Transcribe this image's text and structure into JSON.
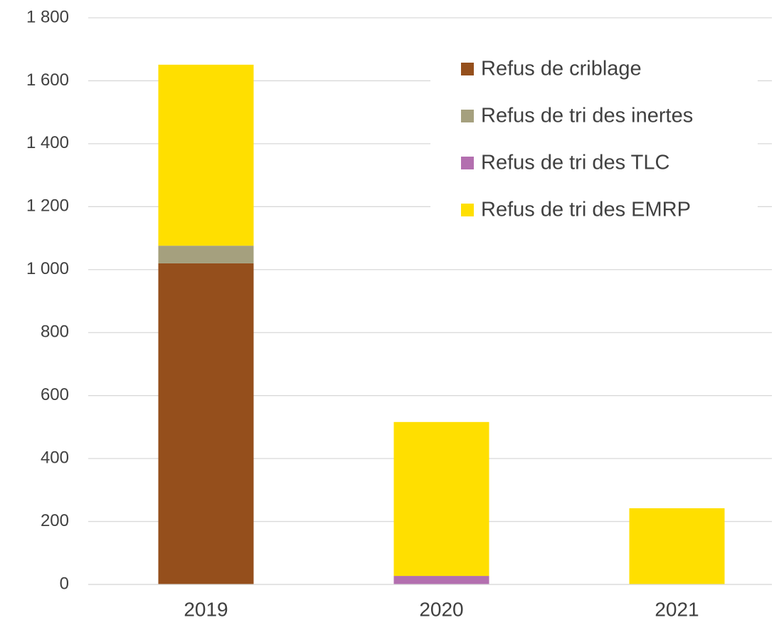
{
  "chart_data": {
    "type": "stacked_bar",
    "categories": [
      "2019",
      "2020",
      "2021"
    ],
    "series": [
      {
        "name": "Refus de criblage",
        "color": "#954f1c",
        "values": [
          1020,
          0,
          0
        ]
      },
      {
        "name": "Refus de tri des inertes",
        "color": "#a5a07e",
        "values": [
          56,
          0,
          0
        ]
      },
      {
        "name": "Refus de tri des TLC",
        "color": "#b36faf",
        "values": [
          0,
          27,
          0
        ]
      },
      {
        "name": "Refus de tri des EMRP",
        "color": "#ffdf00",
        "values": [
          575,
          489,
          242
        ]
      }
    ],
    "ylim": [
      0,
      1800
    ],
    "yticks": [
      0,
      200,
      400,
      600,
      800,
      {
        "value": 1000,
        "label": "1 000"
      },
      {
        "value": 1200,
        "label": "1 200"
      },
      {
        "value": 1400,
        "label": "1 400"
      },
      {
        "value": 1600,
        "label": "1 600"
      },
      {
        "value": 1800,
        "label": "1 800"
      }
    ],
    "grid": true,
    "legend": "upper right"
  }
}
